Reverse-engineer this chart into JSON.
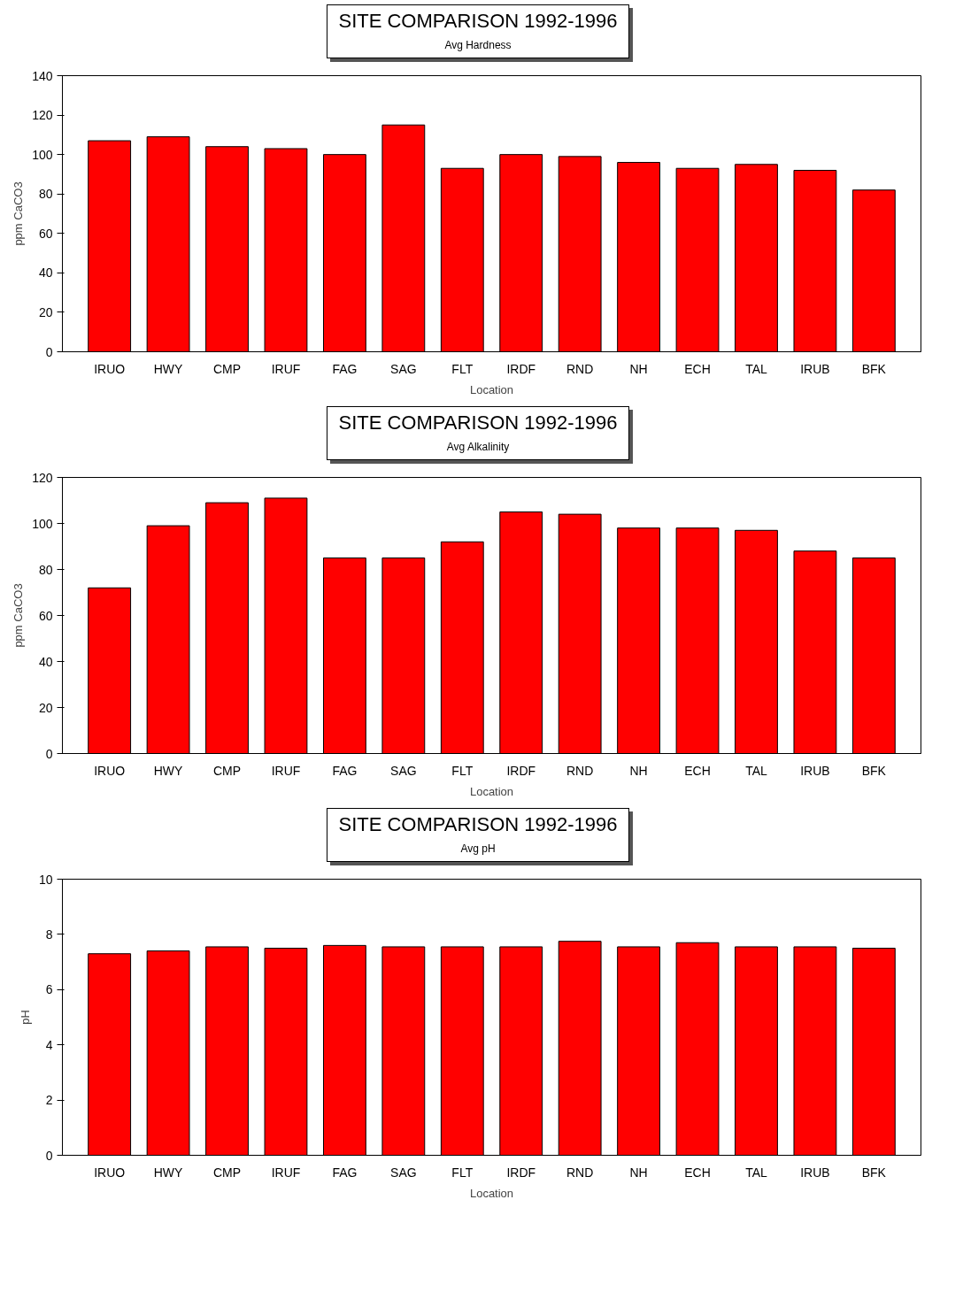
{
  "chart_data": [
    {
      "type": "bar",
      "title": "SITE COMPARISON 1992-1996",
      "subtitle": "Avg Hardness",
      "xlabel": "Location",
      "ylabel": "ppm CaCO3",
      "categories": [
        "IRUO",
        "HWY",
        "CMP",
        "IRUF",
        "FAG",
        "SAG",
        "FLT",
        "IRDF",
        "RND",
        "NH",
        "ECH",
        "TAL",
        "IRUB",
        "BFK"
      ],
      "series": [
        {
          "color": "#ff0000",
          "values": [
            107,
            109,
            104,
            103,
            100,
            115,
            93,
            100,
            99,
            96,
            93,
            95,
            92,
            82
          ]
        }
      ],
      "ylim": [
        0,
        140
      ],
      "yticks": [
        0,
        20,
        40,
        60,
        80,
        100,
        120,
        140
      ],
      "grid": false
    },
    {
      "type": "bar",
      "title": "SITE COMPARISON 1992-1996",
      "subtitle": "Avg Alkalinity",
      "xlabel": "Location",
      "ylabel": "ppm CaCO3",
      "categories": [
        "IRUO",
        "HWY",
        "CMP",
        "IRUF",
        "FAG",
        "SAG",
        "FLT",
        "IRDF",
        "RND",
        "NH",
        "ECH",
        "TAL",
        "IRUB",
        "BFK"
      ],
      "series": [
        {
          "color": "#ff0000",
          "values": [
            72,
            99,
            109,
            111,
            85,
            85,
            92,
            105,
            104,
            98,
            98,
            97,
            88,
            85
          ]
        }
      ],
      "ylim": [
        0,
        120
      ],
      "yticks": [
        0,
        20,
        40,
        60,
        80,
        100,
        120
      ],
      "grid": false
    },
    {
      "type": "bar",
      "title": "SITE COMPARISON 1992-1996",
      "subtitle": "Avg pH",
      "xlabel": "Location",
      "ylabel": "pH",
      "categories": [
        "IRUO",
        "HWY",
        "CMP",
        "IRUF",
        "FAG",
        "SAG",
        "FLT",
        "IRDF",
        "RND",
        "NH",
        "ECH",
        "TAL",
        "IRUB",
        "BFK"
      ],
      "series": [
        {
          "color": "#ff0000",
          "values": [
            7.3,
            7.4,
            7.55,
            7.5,
            7.6,
            7.55,
            7.55,
            7.55,
            7.75,
            7.55,
            7.7,
            7.55,
            7.55,
            7.5
          ]
        }
      ],
      "ylim": [
        0,
        10
      ],
      "yticks": [
        0,
        2,
        4,
        6,
        8,
        10
      ],
      "grid": false
    }
  ]
}
